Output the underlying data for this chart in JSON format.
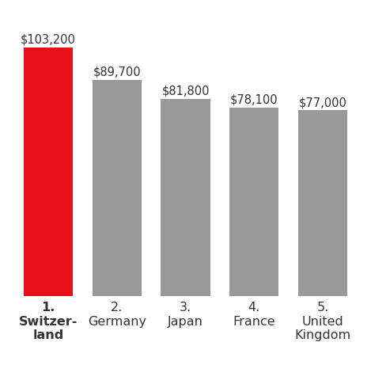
{
  "categories": [
    "1.\nSwitzer-\nland",
    "2.\nGermany",
    "3.\nJapan",
    "4.\nFrance",
    "5.\nUnited\nKingdom"
  ],
  "values": [
    103200,
    89700,
    81800,
    78100,
    77000
  ],
  "labels": [
    "$103,200",
    "$89,700",
    "$81,800",
    "$78,100",
    "$77,000"
  ],
  "bar_colors": [
    "#e8111a",
    "#999999",
    "#999999",
    "#999999",
    "#999999"
  ],
  "background_color": "#ffffff",
  "ylim": [
    0,
    118000
  ],
  "label_fontsize": 10.5,
  "tick_fontsize": 11.5,
  "bold_indices": [
    0
  ]
}
